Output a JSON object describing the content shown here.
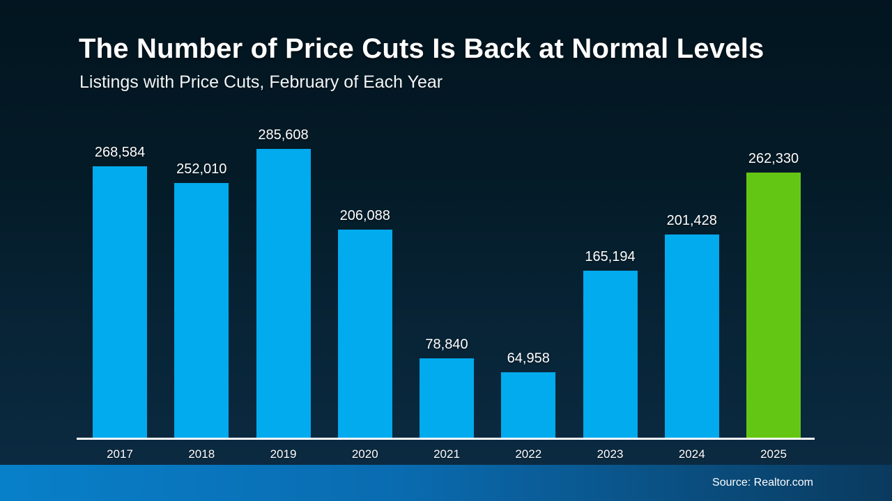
{
  "slide": {
    "title": "The Number of Price Cuts Is Back at Normal Levels",
    "subtitle": "Listings with Price Cuts, February of Each Year",
    "source": "Source: Realtor.com"
  },
  "colors": {
    "bar_default": "#02aaee",
    "bar_highlight": "#64c614",
    "background_top": "#021520",
    "background_bottom": "#0c2c44",
    "footer_gradient_left": "#0880c9",
    "footer_gradient_right": "#0a3a5e",
    "text": "#ffffff"
  },
  "chart_data": {
    "type": "bar",
    "title": "The Number of Price Cuts Is Back at Normal Levels",
    "subtitle": "Listings with Price Cuts, February of Each Year",
    "categories": [
      "2017",
      "2018",
      "2019",
      "2020",
      "2021",
      "2022",
      "2023",
      "2024",
      "2025"
    ],
    "values": [
      268584,
      252010,
      285608,
      206088,
      78840,
      64958,
      165194,
      201428,
      262330
    ],
    "value_labels": [
      "268,584",
      "252,010",
      "285,608",
      "206,088",
      "78,840",
      "64,958",
      "165,194",
      "201,428",
      "262,330"
    ],
    "highlight_index": 8,
    "xlabel": "",
    "ylabel": "",
    "ylim": [
      0,
      285608
    ],
    "grid": false,
    "legend": false,
    "value_label_position": "above-bar",
    "source": "Source: Realtor.com"
  }
}
